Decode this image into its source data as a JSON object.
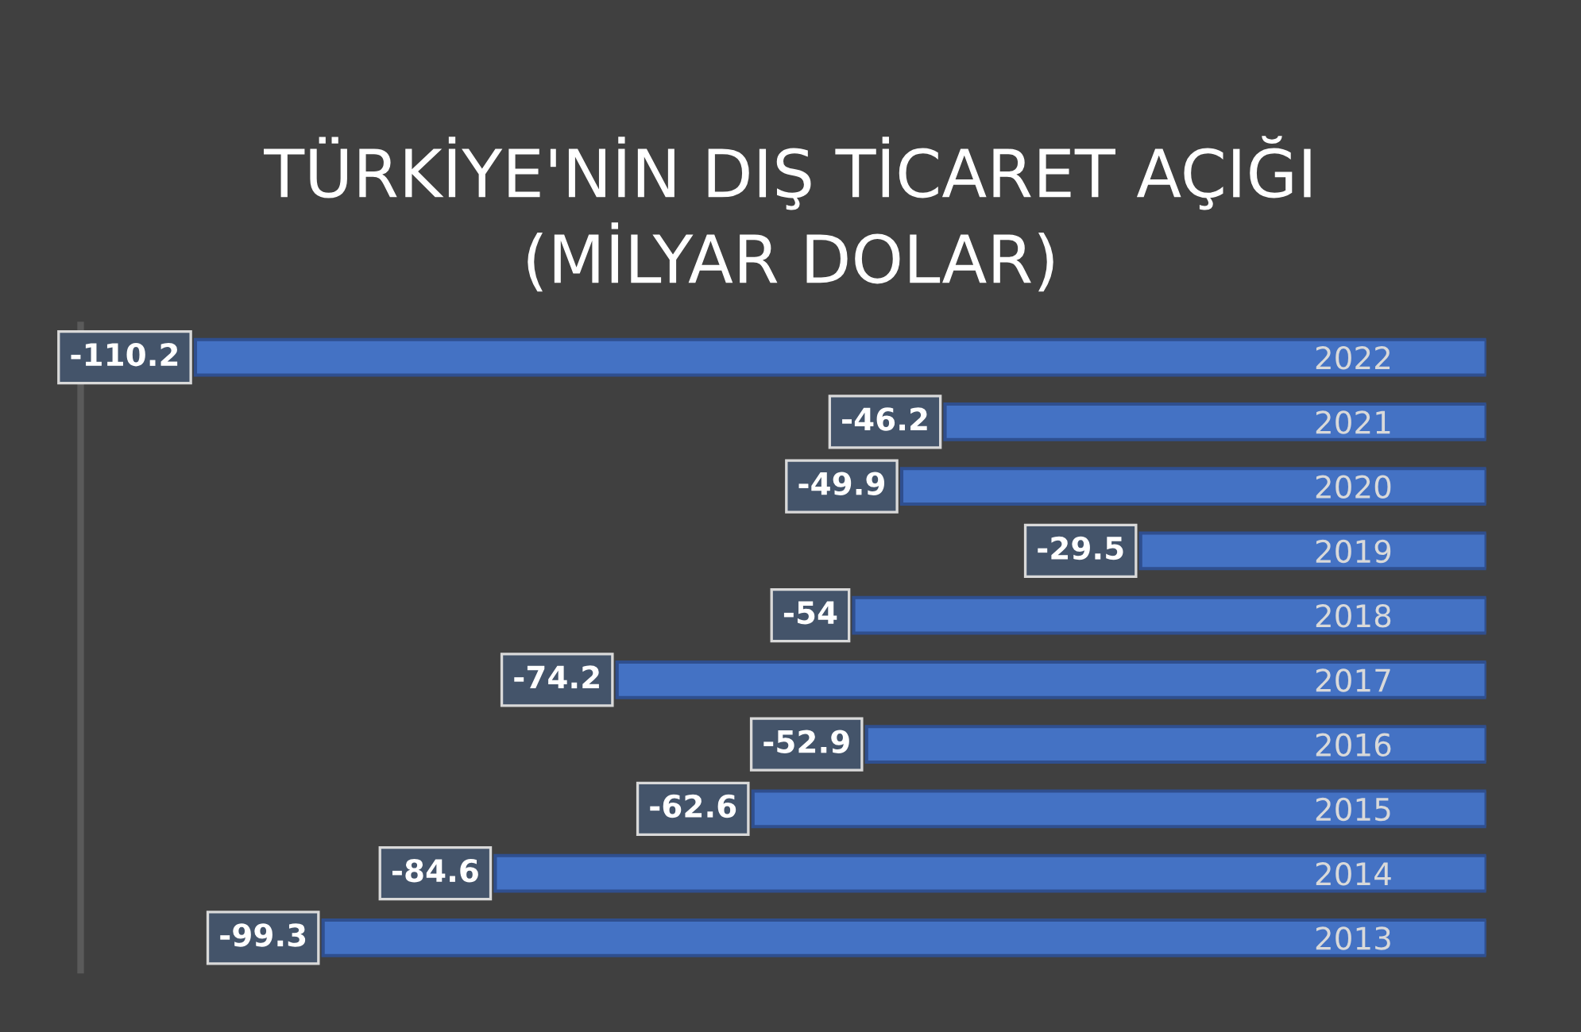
{
  "chart_data": {
    "type": "bar",
    "orientation": "horizontal",
    "title": "TÜRKİYE'NİN DIŞ TİCARET AÇIĞI\n(MİLYAR DOLAR)",
    "categories": [
      "2022",
      "2021",
      "2020",
      "2019",
      "2018",
      "2017",
      "2016",
      "2015",
      "2014",
      "2013"
    ],
    "values": [
      -110.2,
      -46.2,
      -49.9,
      -29.5,
      -54,
      -74.2,
      -52.9,
      -62.6,
      -84.6,
      -99.3
    ],
    "color": "#4472c4",
    "xlim": [
      -120,
      0
    ],
    "data_labels": true,
    "tick_labels": "y",
    "grid": false,
    "legend": false
  }
}
